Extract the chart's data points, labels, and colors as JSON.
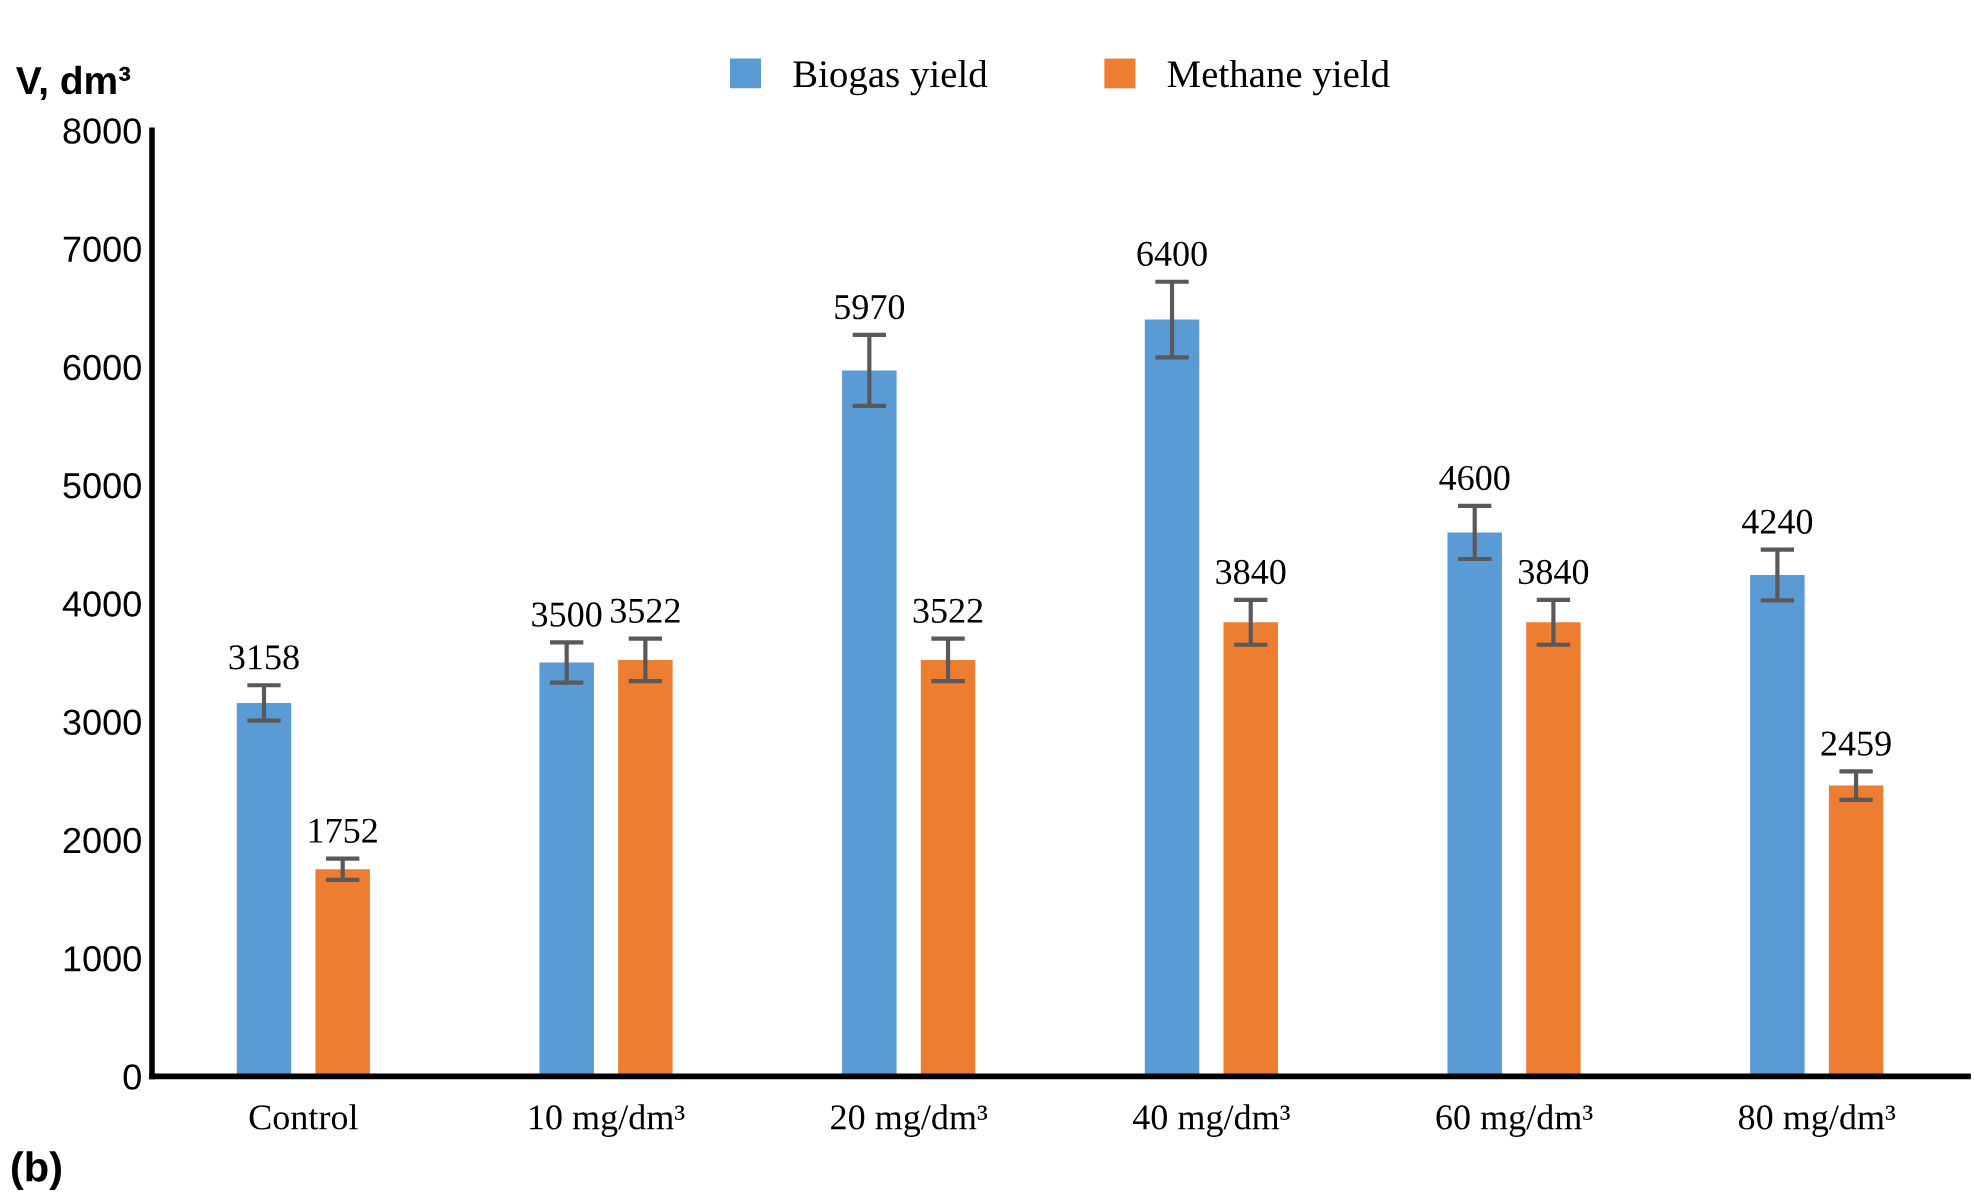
{
  "chart_data": {
    "type": "bar",
    "categories": [
      "Control",
      "10 mg/dm³",
      "20 mg/dm³",
      "40 mg/dm³",
      "60 mg/dm³",
      "80 mg/dm³"
    ],
    "series": [
      {
        "name": "Biogas yield",
        "color": "#5b9bd5",
        "values": [
          3158,
          3500,
          5970,
          6400,
          4600,
          4240
        ],
        "errors": [
          150,
          170,
          300,
          320,
          225,
          215
        ]
      },
      {
        "name": "Methane yield",
        "color": "#ed7d31",
        "values": [
          1752,
          3522,
          3522,
          3840,
          3840,
          2459
        ],
        "errors": [
          90,
          180,
          180,
          190,
          190,
          120
        ]
      }
    ],
    "ylabel": "V, dm³",
    "ylim": [
      0,
      8000
    ],
    "yticks": [
      0,
      1000,
      2000,
      3000,
      4000,
      5000,
      6000,
      7000,
      8000
    ],
    "data_labels": true,
    "grid": false,
    "legend": "top",
    "annotations": [
      "(b)"
    ]
  }
}
